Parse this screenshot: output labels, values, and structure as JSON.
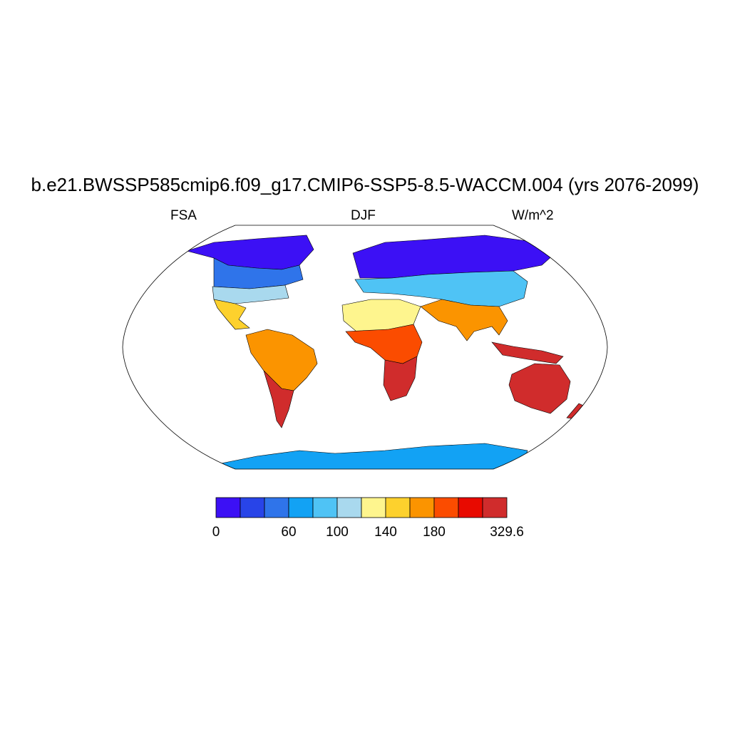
{
  "title": "b.e21.BWSSP585cmip6.f09_g17.CMIP6-SSP5-8.5-WACCM.004 (yrs 2076-2099)",
  "left_subtitle": "FSA",
  "center_subtitle": "DJF",
  "right_subtitle": "W/m^2",
  "colorbar": {
    "colors": [
      "#3c10f5",
      "#2844e8",
      "#2f74ea",
      "#12a2f4",
      "#4fc3f5",
      "#a9d9ee",
      "#fef58e",
      "#fdd12d",
      "#fb9400",
      "#fb4c00",
      "#e80a00",
      "#d02c2c"
    ],
    "labels": [
      {
        "text": "0",
        "index": 0
      },
      {
        "text": "60",
        "index": 3
      },
      {
        "text": "100",
        "index": 5
      },
      {
        "text": "140",
        "index": 7
      },
      {
        "text": "180",
        "index": 9
      },
      {
        "text": "329.6",
        "index": 12
      }
    ]
  },
  "land": [
    {
      "name": "north-america-north",
      "color": "#3c10f5"
    },
    {
      "name": "north-america-mid",
      "color": "#2f74ea"
    },
    {
      "name": "usa-south",
      "color": "#a9d9ee"
    },
    {
      "name": "mexico",
      "color": "#fdd12d"
    },
    {
      "name": "south-america",
      "color": "#fb9400"
    },
    {
      "name": "patagonia",
      "color": "#d02c2c"
    },
    {
      "name": "eurasia-north",
      "color": "#3c10f5"
    },
    {
      "name": "eurasia-mid",
      "color": "#4fc3f5"
    },
    {
      "name": "sahara",
      "color": "#fef58e"
    },
    {
      "name": "africa-central",
      "color": "#fb4c00"
    },
    {
      "name": "africa-south",
      "color": "#d02c2c"
    },
    {
      "name": "south-asia",
      "color": "#fb9400"
    },
    {
      "name": "australia",
      "color": "#d02c2c"
    },
    {
      "name": "antarctica",
      "color": "#12a2f4"
    }
  ]
}
